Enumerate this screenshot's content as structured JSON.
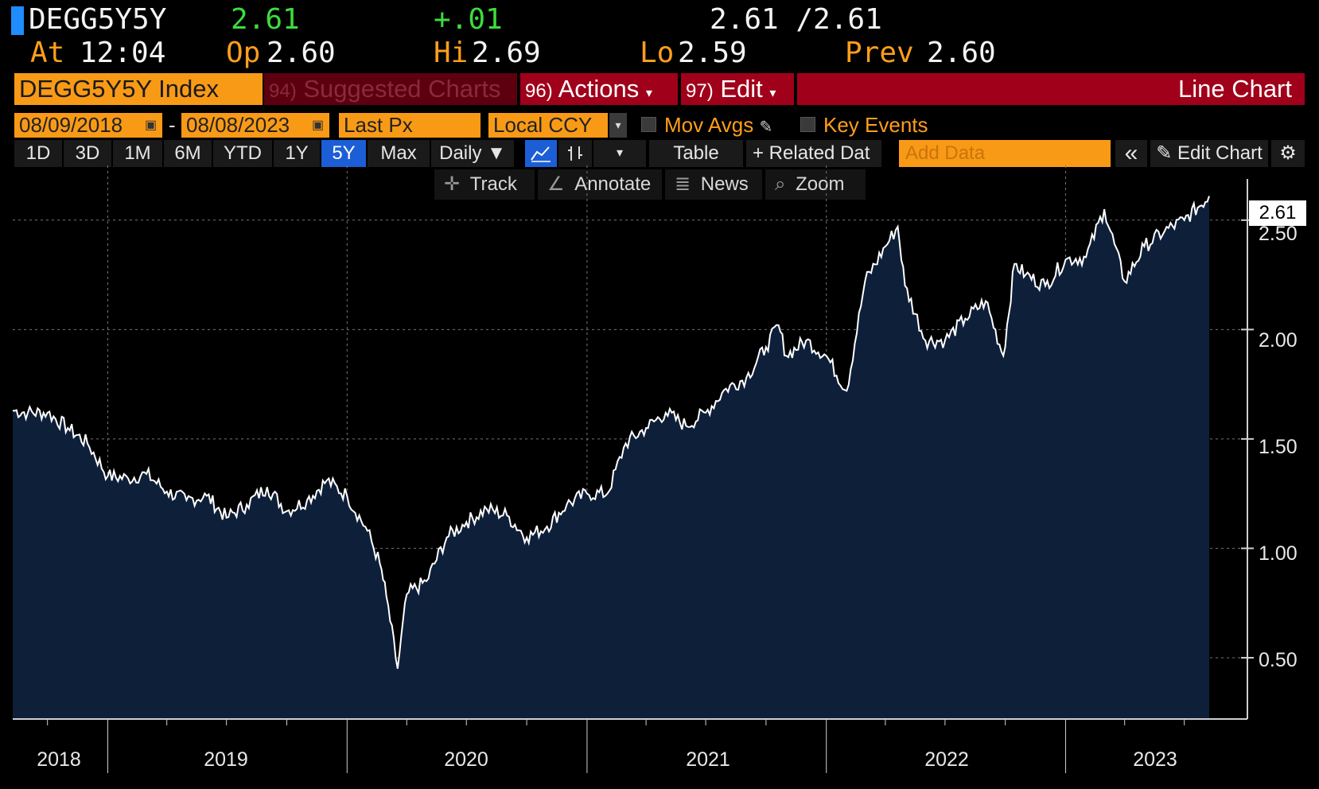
{
  "quote": {
    "ticker": "DEGG5Y5Y",
    "last": "2.61",
    "change": "+.01",
    "bid_ask": "2.61 /2.61",
    "at_label": "At",
    "time": "12:04",
    "op_label": "Op",
    "open": "2.60",
    "hi_label": "Hi",
    "high": "2.69",
    "lo_label": "Lo",
    "low": "2.59",
    "prev_label": "Prev",
    "prev": "2.60"
  },
  "menu": {
    "security": "DEGG5Y5Y Index",
    "suggested_num": "94)",
    "suggested": "Suggested Charts",
    "actions_num": "96)",
    "actions": "Actions",
    "edit_num": "97)",
    "edit": "Edit",
    "chart_type": "Line Chart"
  },
  "controls": {
    "start_date": "08/09/2018",
    "dash": "-",
    "end_date": "08/08/2023",
    "field": "Last Px",
    "currency": "Local CCY",
    "mov_avgs": "Mov Avgs",
    "key_events": "Key Events"
  },
  "periods": [
    "1D",
    "3D",
    "1M",
    "6M",
    "YTD",
    "1Y",
    "5Y",
    "Max"
  ],
  "active_period": "5Y",
  "toolbar": {
    "frequency": "Daily ▼",
    "table": "Table",
    "related": "+ Related Dat",
    "add_data_placeholder": "Add Data",
    "collapse": "«",
    "edit_chart": "Edit Chart"
  },
  "tools": {
    "track": "Track",
    "annotate": "Annotate",
    "news": "News",
    "zoom": "Zoom"
  },
  "colors": {
    "orange": "#f99a16",
    "green": "#3ddc3d",
    "red_bar": "#a0001a",
    "dark_red": "#5c0010",
    "area_fill": "#0e1f3a",
    "line": "#ffffff",
    "selected": "#1c5ed6"
  },
  "chart_data": {
    "type": "area",
    "x_tick_labels": [
      "2018",
      "2019",
      "2020",
      "2021",
      "2022",
      "2023"
    ],
    "y_tick_labels": [
      "0.50",
      "1.00",
      "1.50",
      "2.00",
      "2.50"
    ],
    "ylim": [
      0.22,
      2.75
    ],
    "last_value_label": "2.61",
    "grid": true,
    "series": [
      {
        "x": [
          "2018-08-09",
          "2018-09-01",
          "2018-10-01",
          "2018-11-01",
          "2018-12-01",
          "2019-01-01",
          "2019-02-01",
          "2019-03-01",
          "2019-04-01",
          "2019-05-01",
          "2019-06-01",
          "2019-07-01",
          "2019-08-01",
          "2019-09-01",
          "2019-10-01",
          "2019-11-01",
          "2019-12-01",
          "2020-01-01",
          "2020-02-01",
          "2020-02-20",
          "2020-03-01",
          "2020-03-18",
          "2020-04-01",
          "2020-05-01",
          "2020-06-01",
          "2020-07-01",
          "2020-08-01",
          "2020-09-01",
          "2020-10-01",
          "2020-11-01",
          "2020-12-01",
          "2021-01-01",
          "2021-02-01",
          "2021-03-01",
          "2021-04-01",
          "2021-05-01",
          "2021-06-01",
          "2021-07-01",
          "2021-08-01",
          "2021-09-01",
          "2021-10-01",
          "2021-10-20",
          "2021-11-01",
          "2021-12-01",
          "2022-01-01",
          "2022-02-01",
          "2022-03-01",
          "2022-04-01",
          "2022-04-20",
          "2022-05-01",
          "2022-06-01",
          "2022-07-01",
          "2022-08-01",
          "2022-09-01",
          "2022-09-28",
          "2022-10-15",
          "2022-11-01",
          "2022-12-01",
          "2023-01-01",
          "2023-02-01",
          "2023-03-01",
          "2023-04-01",
          "2023-05-01",
          "2023-06-01",
          "2023-07-01",
          "2023-08-08"
        ],
        "values": [
          1.63,
          1.62,
          1.62,
          1.55,
          1.48,
          1.33,
          1.32,
          1.34,
          1.26,
          1.22,
          1.24,
          1.14,
          1.2,
          1.28,
          1.17,
          1.22,
          1.31,
          1.24,
          1.08,
          0.93,
          0.78,
          0.45,
          0.79,
          0.85,
          1.05,
          1.12,
          1.18,
          1.15,
          1.05,
          1.1,
          1.2,
          1.25,
          1.25,
          1.48,
          1.55,
          1.62,
          1.56,
          1.62,
          1.73,
          1.78,
          1.92,
          2.02,
          1.88,
          1.95,
          1.88,
          1.72,
          2.22,
          2.38,
          2.47,
          2.2,
          1.95,
          1.95,
          2.05,
          2.13,
          1.88,
          2.3,
          2.25,
          2.2,
          2.32,
          2.33,
          2.55,
          2.22,
          2.38,
          2.45,
          2.5,
          2.61
        ]
      }
    ]
  }
}
